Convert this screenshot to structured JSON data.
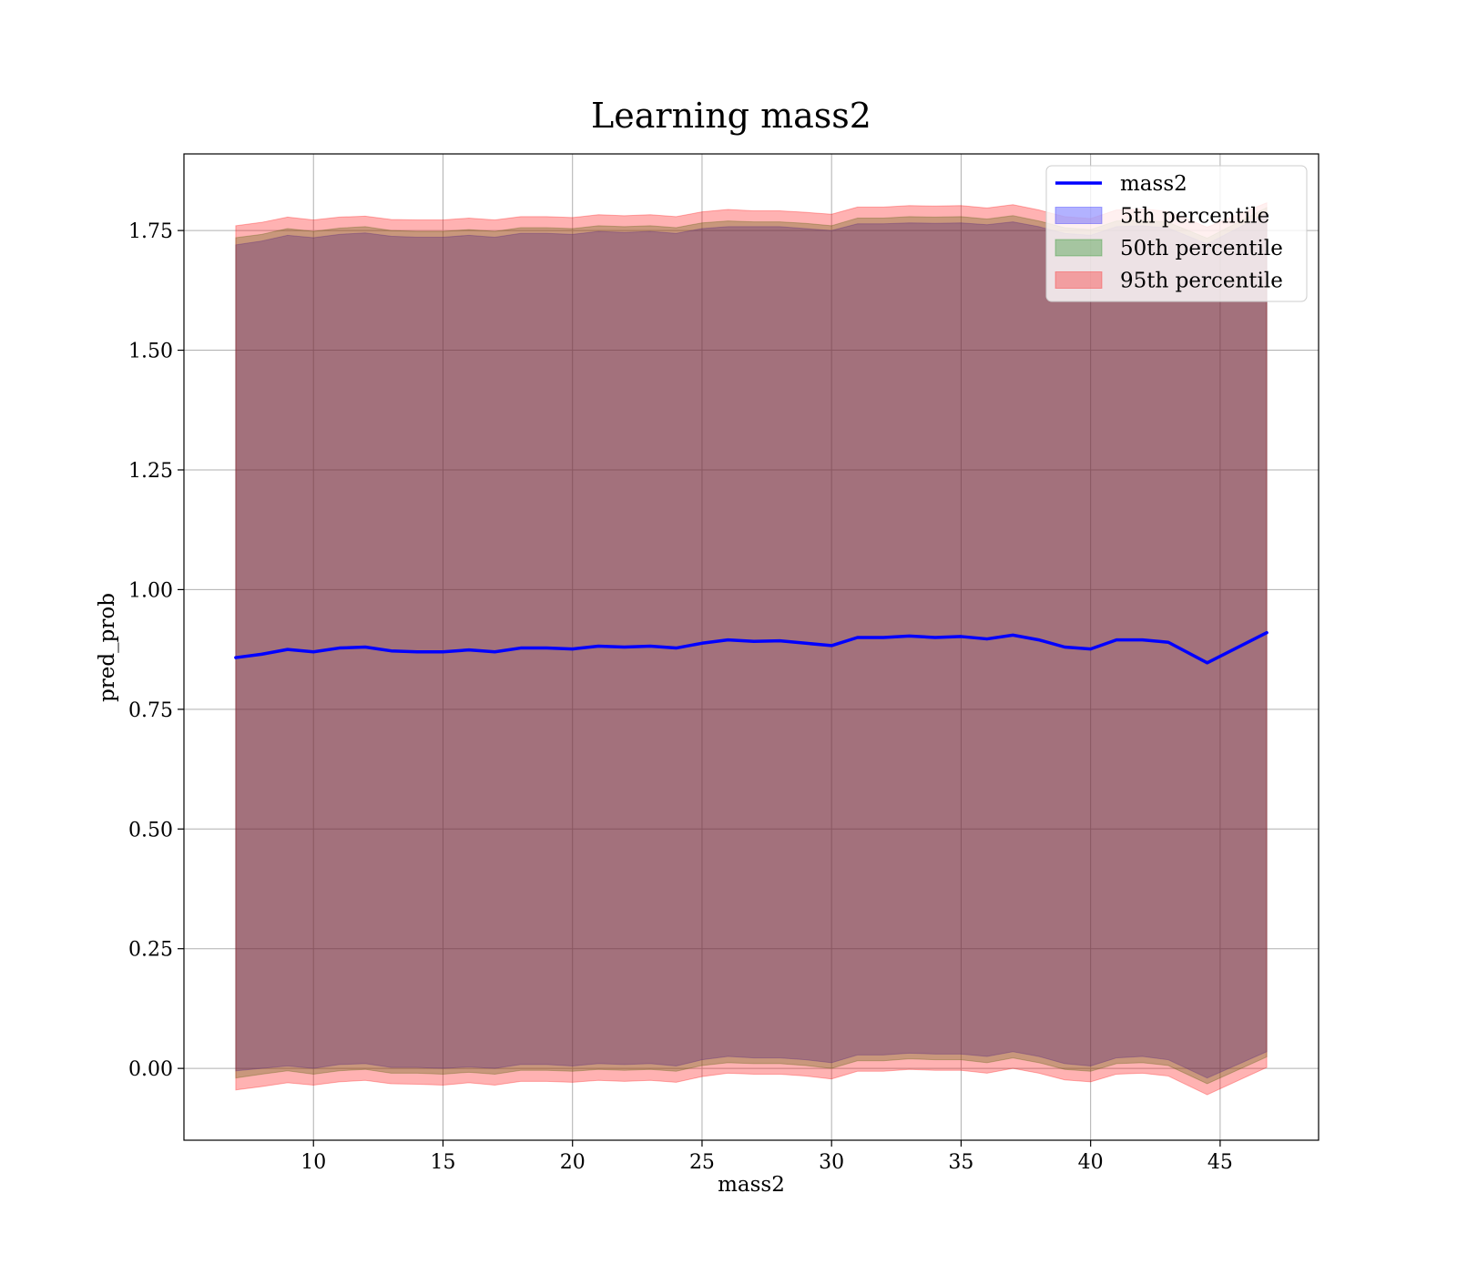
{
  "chart_data": {
    "type": "area",
    "title": "Learning mass2",
    "xlabel": "mass2",
    "ylabel": "pred_prob",
    "xlim": [
      5.0,
      48.8
    ],
    "ylim": [
      -0.15,
      1.91
    ],
    "xticks": [
      10,
      15,
      20,
      25,
      30,
      35,
      40,
      45
    ],
    "yticks": [
      0.0,
      0.25,
      0.5,
      0.75,
      1.0,
      1.25,
      1.5,
      1.75
    ],
    "ytick_labels": [
      "0.00",
      "0.25",
      "0.50",
      "0.75",
      "1.00",
      "1.25",
      "1.50",
      "1.75"
    ],
    "grid": true,
    "legend_position": "top-right",
    "x": [
      7.0,
      8.0,
      9.0,
      10.0,
      11.0,
      12.0,
      13.0,
      14.0,
      15.0,
      16.0,
      17.0,
      18.0,
      19.0,
      20.0,
      21.0,
      22.0,
      23.0,
      24.0,
      25.0,
      26.0,
      27.0,
      28.0,
      29.0,
      30.0,
      31.0,
      32.0,
      33.0,
      34.0,
      35.0,
      36.0,
      37.0,
      38.0,
      39.0,
      40.0,
      41.0,
      42.0,
      43.0,
      44.5,
      46.8
    ],
    "series": [
      {
        "name": "mass2",
        "kind": "line",
        "color": "#0000ff",
        "values": [
          0.858,
          0.865,
          0.875,
          0.87,
          0.878,
          0.88,
          0.872,
          0.87,
          0.87,
          0.874,
          0.87,
          0.878,
          0.878,
          0.876,
          0.882,
          0.88,
          0.882,
          0.878,
          0.888,
          0.895,
          0.892,
          0.893,
          0.888,
          0.883,
          0.9,
          0.9,
          0.903,
          0.9,
          0.902,
          0.897,
          0.905,
          0.895,
          0.88,
          0.876,
          0.895,
          0.895,
          0.89,
          0.847,
          0.91
        ]
      },
      {
        "name": "5th percentile",
        "kind": "band",
        "color": "#0000ff",
        "lower": [
          -0.005,
          0.0,
          0.005,
          0.0,
          0.008,
          0.01,
          0.002,
          0.002,
          0.0,
          0.003,
          0.0,
          0.008,
          0.008,
          0.005,
          0.01,
          0.008,
          0.01,
          0.005,
          0.018,
          0.025,
          0.022,
          0.022,
          0.018,
          0.012,
          0.028,
          0.028,
          0.032,
          0.03,
          0.03,
          0.025,
          0.035,
          0.025,
          0.01,
          0.005,
          0.022,
          0.025,
          0.018,
          -0.02,
          0.035
        ],
        "upper": [
          1.72,
          1.728,
          1.74,
          1.735,
          1.742,
          1.745,
          1.738,
          1.736,
          1.736,
          1.74,
          1.736,
          1.744,
          1.744,
          1.742,
          1.748,
          1.746,
          1.748,
          1.744,
          1.754,
          1.758,
          1.758,
          1.758,
          1.754,
          1.75,
          1.764,
          1.764,
          1.766,
          1.765,
          1.766,
          1.762,
          1.768,
          1.758,
          1.744,
          1.74,
          1.758,
          1.76,
          1.755,
          1.722,
          1.786
        ]
      },
      {
        "name": "50th percentile",
        "kind": "band",
        "color": "#008000",
        "lower": [
          -0.02,
          -0.012,
          -0.005,
          -0.012,
          -0.005,
          -0.002,
          -0.01,
          -0.01,
          -0.012,
          -0.008,
          -0.012,
          -0.004,
          -0.004,
          -0.006,
          -0.002,
          -0.004,
          -0.002,
          -0.006,
          0.006,
          0.012,
          0.01,
          0.01,
          0.006,
          0.0,
          0.016,
          0.016,
          0.02,
          0.018,
          0.018,
          0.012,
          0.022,
          0.012,
          -0.002,
          -0.006,
          0.01,
          0.012,
          0.006,
          -0.032,
          0.024
        ],
        "upper": [
          1.735,
          1.742,
          1.754,
          1.748,
          1.755,
          1.758,
          1.75,
          1.748,
          1.748,
          1.752,
          1.748,
          1.756,
          1.756,
          1.754,
          1.76,
          1.758,
          1.76,
          1.756,
          1.766,
          1.77,
          1.768,
          1.768,
          1.765,
          1.76,
          1.776,
          1.776,
          1.779,
          1.778,
          1.779,
          1.774,
          1.781,
          1.77,
          1.756,
          1.752,
          1.77,
          1.772,
          1.767,
          1.734,
          1.798
        ]
      },
      {
        "name": "95th percentile",
        "kind": "band",
        "color": "#ff0000",
        "lower": [
          -0.045,
          -0.038,
          -0.03,
          -0.035,
          -0.028,
          -0.025,
          -0.032,
          -0.033,
          -0.035,
          -0.03,
          -0.035,
          -0.027,
          -0.027,
          -0.029,
          -0.025,
          -0.027,
          -0.025,
          -0.029,
          -0.017,
          -0.01,
          -0.012,
          -0.012,
          -0.016,
          -0.022,
          -0.006,
          -0.006,
          -0.002,
          -0.004,
          -0.004,
          -0.01,
          0.0,
          -0.01,
          -0.024,
          -0.028,
          -0.012,
          -0.01,
          -0.016,
          -0.055,
          0.002
        ],
        "upper": [
          1.76,
          1.767,
          1.778,
          1.772,
          1.778,
          1.78,
          1.773,
          1.772,
          1.772,
          1.776,
          1.772,
          1.779,
          1.779,
          1.777,
          1.783,
          1.781,
          1.783,
          1.779,
          1.789,
          1.794,
          1.791,
          1.791,
          1.788,
          1.784,
          1.799,
          1.799,
          1.802,
          1.801,
          1.802,
          1.797,
          1.804,
          1.793,
          1.779,
          1.775,
          1.793,
          1.795,
          1.79,
          1.757,
          1.808
        ]
      }
    ]
  }
}
